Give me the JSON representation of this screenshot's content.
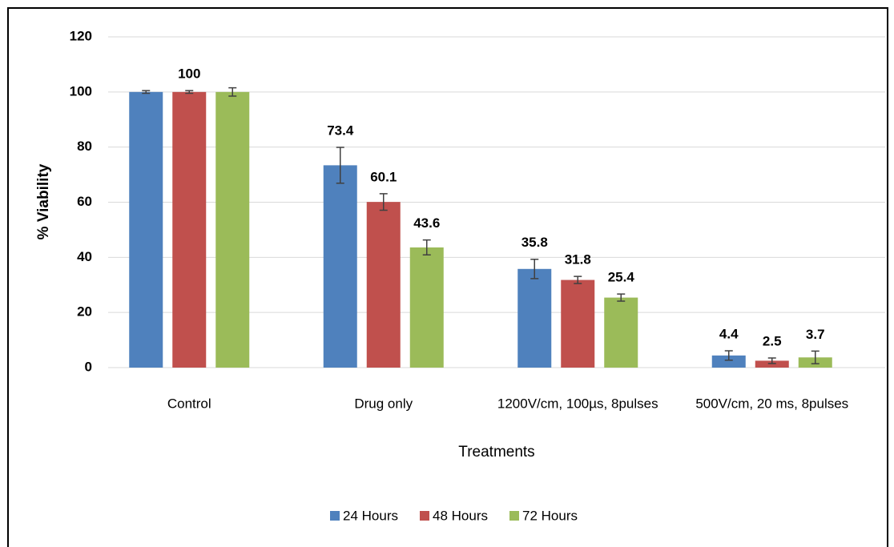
{
  "chart_data": {
    "type": "bar",
    "y_label": "% Viability",
    "x_label": "Treatments",
    "categories": [
      "Control",
      "Drug only",
      "1200V/cm, 100µs, 8pulses",
      "500V/cm, 20 ms, 8pulses"
    ],
    "series": [
      {
        "name": "24 Hours",
        "color": "#4f81bd",
        "values": [
          100,
          73.4,
          35.8,
          4.4
        ],
        "errors": [
          0.5,
          6.5,
          3.5,
          1.7
        ],
        "value_labels": [
          null,
          "73.4",
          "35.8",
          "4.4"
        ]
      },
      {
        "name": "48 Hours",
        "color": "#c0504d",
        "values": [
          100,
          60.1,
          31.8,
          2.5
        ],
        "errors": [
          0.5,
          3,
          1.3,
          1
        ],
        "value_labels": [
          "100",
          "60.1",
          "31.8",
          "2.5"
        ]
      },
      {
        "name": "72 Hours",
        "color": "#9bbb59",
        "values": [
          100,
          43.6,
          25.4,
          3.7
        ],
        "errors": [
          1.5,
          2.7,
          1.3,
          2.3
        ],
        "value_labels": [
          null,
          "43.6",
          "25.4",
          "3.7"
        ]
      }
    ],
    "ylim": [
      0,
      120
    ],
    "yticks": [
      0,
      20,
      40,
      60,
      80,
      100,
      120
    ],
    "grid": true,
    "legend": "bottom"
  }
}
